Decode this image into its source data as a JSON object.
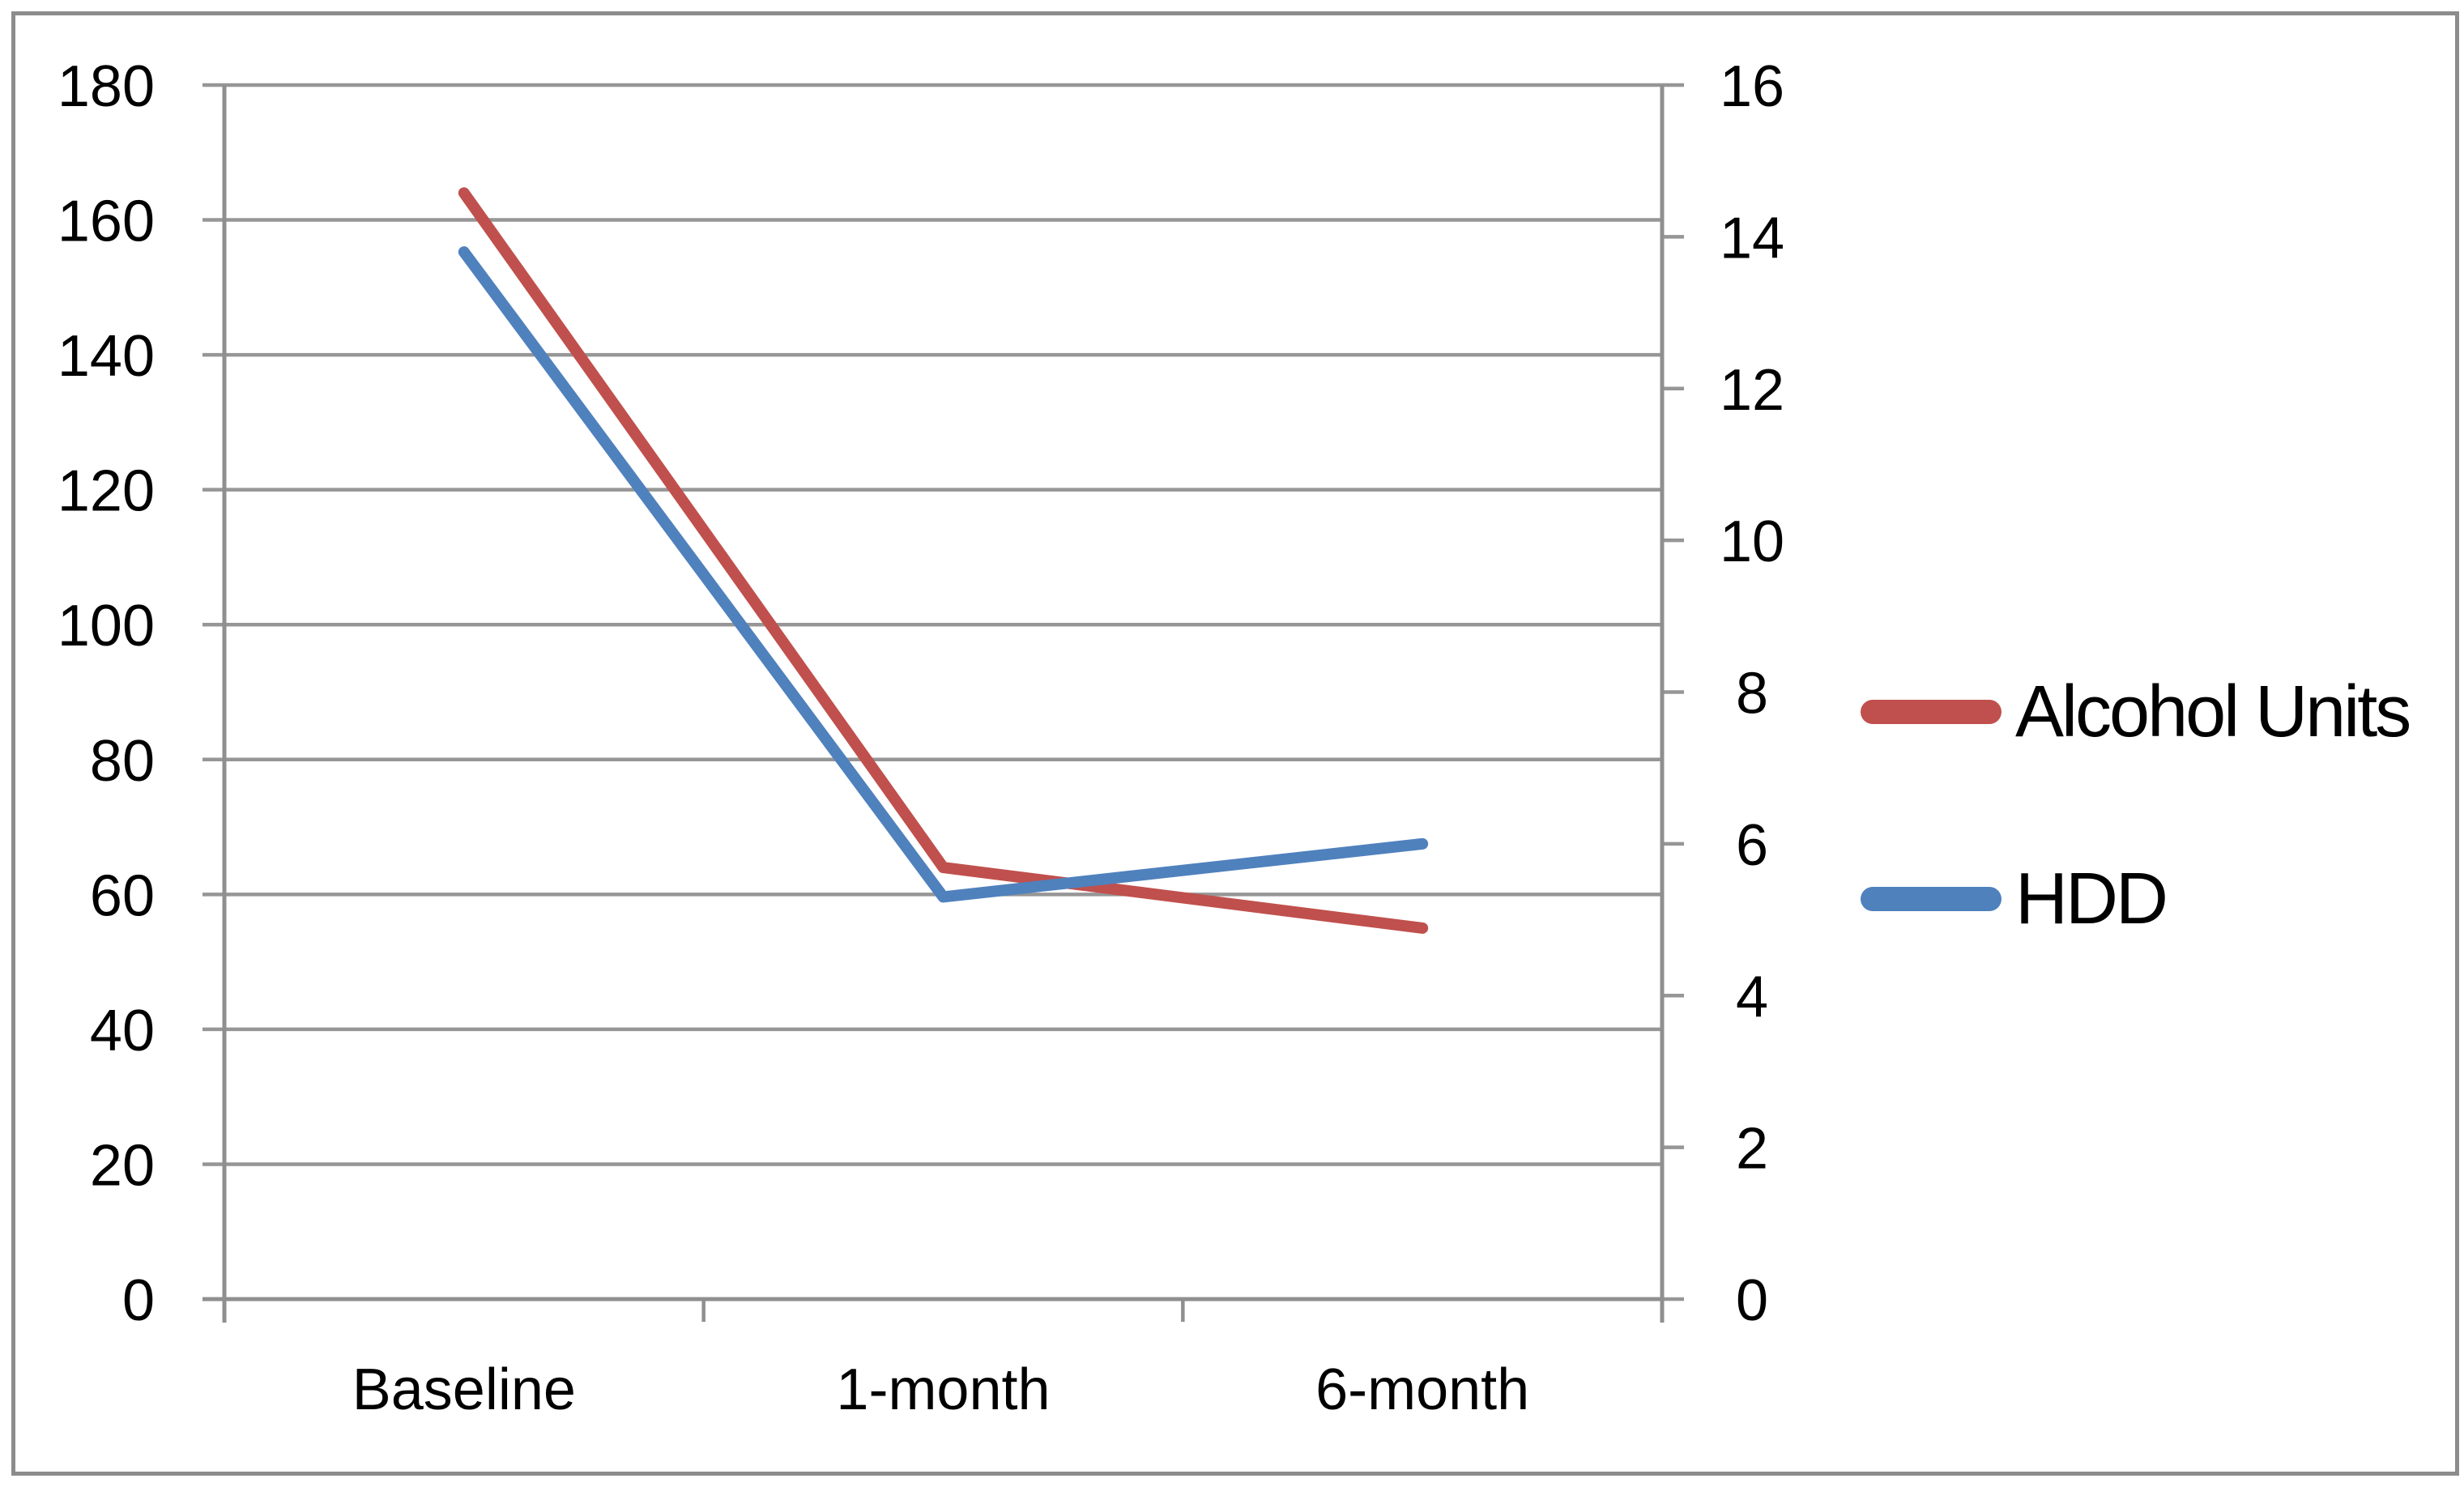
{
  "chart_data": {
    "type": "line",
    "title": "",
    "xlabel": "",
    "ylabel": "",
    "grid": true,
    "legend_position": "right",
    "categories": [
      "Baseline",
      "1-month",
      "6-month"
    ],
    "series": [
      {
        "name": "Alcohol Units",
        "axis": "left",
        "color": "#C0504D",
        "values": [
          164,
          64,
          55
        ]
      },
      {
        "name": "HDD",
        "axis": "right",
        "color": "#4F81BD",
        "values": [
          13.8,
          5.3,
          6.0
        ]
      }
    ],
    "left_axis": {
      "min": 0,
      "max": 180,
      "step": 20,
      "ticks": [
        0,
        20,
        40,
        60,
        80,
        100,
        120,
        140,
        160,
        180
      ]
    },
    "right_axis": {
      "min": 0,
      "max": 16,
      "step": 2,
      "ticks": [
        0,
        2,
        4,
        6,
        8,
        10,
        12,
        14,
        16
      ]
    }
  },
  "colors": {
    "gridline": "#969696",
    "axis": "#8f8f8f",
    "tick_text": "#000000",
    "frame_border": "#8c8c8c",
    "background": "#ffffff"
  }
}
